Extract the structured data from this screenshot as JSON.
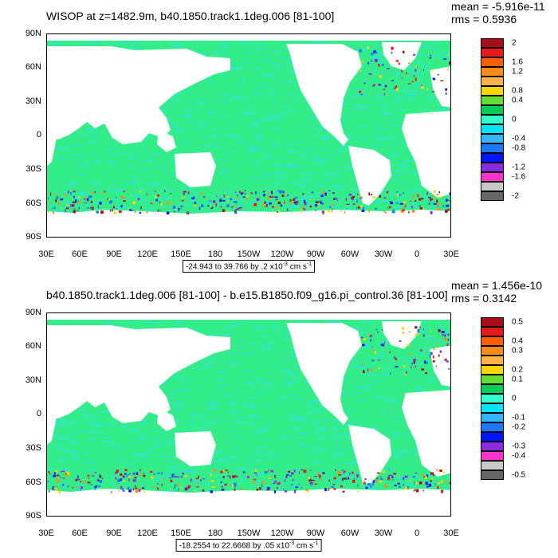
{
  "panels": [
    {
      "title": "WISOP at z=1482.9m, b40.1850.track1.1deg.006 [81-100]",
      "mean": "mean = -5.916e-11",
      "rms": "rms = 0.5936",
      "range": "-24.943 to 39.766 by .2 x10",
      "range_exp": "-3",
      "range_units": " cm s",
      "range_units_exp": "-1",
      "colorbar_labels": [
        "2",
        "1.6",
        "1.2",
        "0.8",
        "0.4",
        "0",
        "-0.4",
        "-0.8",
        "-1.2",
        "-1.6",
        "-2"
      ]
    },
    {
      "title": "b40.1850.track1.1deg.006 [81-100] - b.e15.B1850.f09_g16.pi_control.36 [81-100]",
      "mean": "mean = 1.456e-10",
      "rms": "rms = 0.3142",
      "range": "-18.2554 to 22.6668 by .05 x10",
      "range_exp": "-3",
      "range_units": " cm s",
      "range_units_exp": "-1",
      "colorbar_labels": [
        "0.5",
        "0.4",
        "0.3",
        "0.2",
        "0.1",
        "0",
        "-0.1",
        "-0.2",
        "-0.3",
        "-0.4",
        "-0.5"
      ]
    }
  ],
  "lat_labels": [
    "90N",
    "60N",
    "30N",
    "0",
    "30S",
    "60S",
    "90S"
  ],
  "lon_labels": [
    "30E",
    "60E",
    "90E",
    "120E",
    "150E",
    "180",
    "150W",
    "120W",
    "90W",
    "60W",
    "30W",
    "0",
    "30E"
  ],
  "colorbar_colors": [
    "#a50f15",
    "#e41a1c",
    "#ff5e00",
    "#ff8c1a",
    "#ffb347",
    "#ffd700",
    "#66dd33",
    "#00cc55",
    "#33ffcc",
    "#00e5ff",
    "#33b5ff",
    "#1e78ff",
    "#0014ff",
    "#8a2be2",
    "#ff33cc",
    "#c8c8c8",
    "#666666"
  ],
  "field_colors": {
    "ocean": "#33ee88",
    "ocean_alt": "#2fe6c8",
    "land": "#ffffff"
  }
}
